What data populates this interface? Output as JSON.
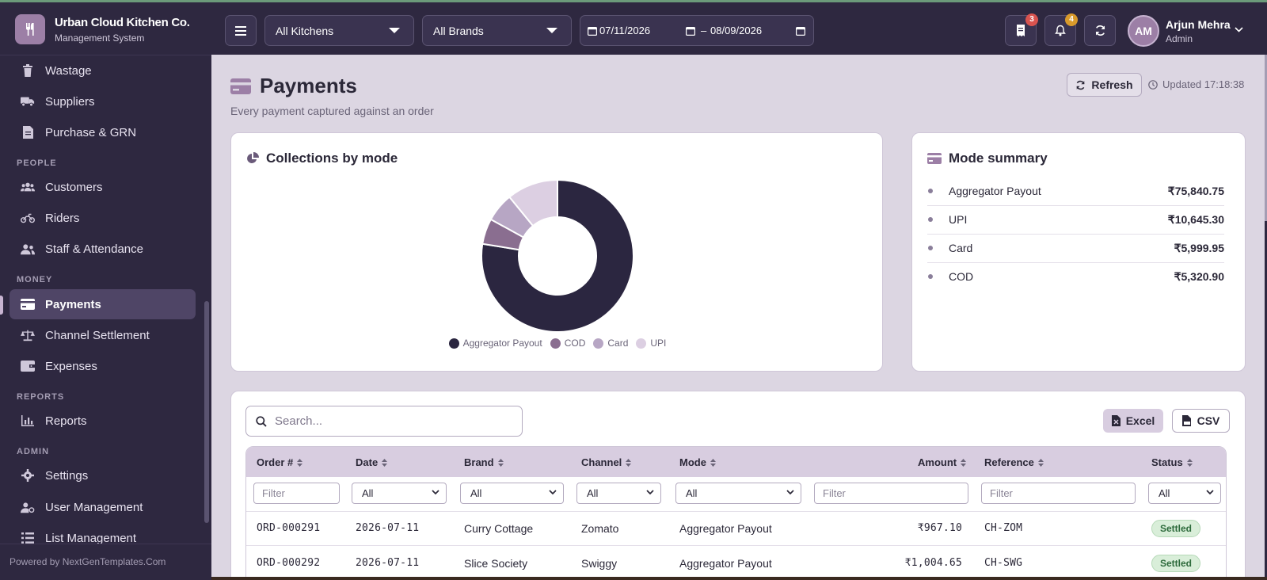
{
  "app": {
    "title": "Urban Cloud Kitchen Co.",
    "subtitle": "Management System",
    "powered_by": "Powered by NextGenTemplates.Com"
  },
  "topbar": {
    "kitchen_select": "All Kitchens",
    "brand_select": "All Brands",
    "date_from": "07/11/2026",
    "date_sep": "–",
    "date_to": "08/09/2026",
    "orders_badge": "3",
    "notifications_badge": "4",
    "user": {
      "initials": "AM",
      "name": "Arjun Mehra",
      "role": "Admin"
    }
  },
  "sidebar": {
    "items_top": [
      {
        "label": "Wastage",
        "icon": "trash-icon"
      },
      {
        "label": "Suppliers",
        "icon": "truck-icon"
      },
      {
        "label": "Purchase & GRN",
        "icon": "document-icon"
      }
    ],
    "section_people": "PEOPLE",
    "items_people": [
      {
        "label": "Customers",
        "icon": "users-icon"
      },
      {
        "label": "Riders",
        "icon": "motorcycle-icon"
      },
      {
        "label": "Staff & Attendance",
        "icon": "staff-icon"
      }
    ],
    "section_money": "MONEY",
    "items_money": [
      {
        "label": "Payments",
        "icon": "card-icon",
        "active": true
      },
      {
        "label": "Channel Settlement",
        "icon": "scale-icon"
      },
      {
        "label": "Expenses",
        "icon": "wallet-icon"
      }
    ],
    "section_reports": "REPORTS",
    "items_reports": [
      {
        "label": "Reports",
        "icon": "bar-chart-icon"
      }
    ],
    "section_admin": "ADMIN",
    "items_admin": [
      {
        "label": "Settings",
        "icon": "gear-icon"
      },
      {
        "label": "User Management",
        "icon": "user-cog-icon"
      },
      {
        "label": "List Management",
        "icon": "list-icon"
      }
    ]
  },
  "page": {
    "title": "Payments",
    "subtitle": "Every payment captured against an order",
    "refresh_label": "Refresh",
    "updated_label": "Updated 17:18:38"
  },
  "collections_card": {
    "title": "Collections by mode"
  },
  "chart_data": {
    "type": "pie",
    "categories": [
      "Aggregator Payout",
      "COD",
      "Card",
      "UPI"
    ],
    "values": [
      75840.75,
      5320.9,
      5999.95,
      10645.3
    ],
    "colors": [
      "#2b2640",
      "#8a6e90",
      "#b7a6c4",
      "#dccfe2"
    ],
    "donut": true,
    "legend": "bottom"
  },
  "summary_card": {
    "title": "Mode summary",
    "rows": [
      {
        "label": "Aggregator Payout",
        "amount": "₹75,840.75"
      },
      {
        "label": "UPI",
        "amount": "₹10,645.30"
      },
      {
        "label": "Card",
        "amount": "₹5,999.95"
      },
      {
        "label": "COD",
        "amount": "₹5,320.90"
      }
    ]
  },
  "table": {
    "search_placeholder": "Search...",
    "excel_label": "Excel",
    "csv_label": "CSV",
    "headers": [
      "Order #",
      "Date",
      "Brand",
      "Channel",
      "Mode",
      "Amount",
      "Reference",
      "Status"
    ],
    "filters": {
      "order_placeholder": "Filter",
      "date": "All",
      "brand": "All",
      "channel": "All",
      "mode": "All",
      "amount_placeholder": "Filter",
      "reference_placeholder": "Filter",
      "status": "All"
    },
    "rows": [
      {
        "order": "ORD-000291",
        "date": "2026-07-11",
        "brand": "Curry Cottage",
        "channel": "Zomato",
        "mode": "Aggregator Payout",
        "amount": "₹967.10",
        "reference": "CH-ZOM",
        "status": "Settled"
      },
      {
        "order": "ORD-000292",
        "date": "2026-07-11",
        "brand": "Slice Society",
        "channel": "Swiggy",
        "mode": "Aggregator Payout",
        "amount": "₹1,004.65",
        "reference": "CH-SWG",
        "status": "Settled"
      }
    ]
  }
}
